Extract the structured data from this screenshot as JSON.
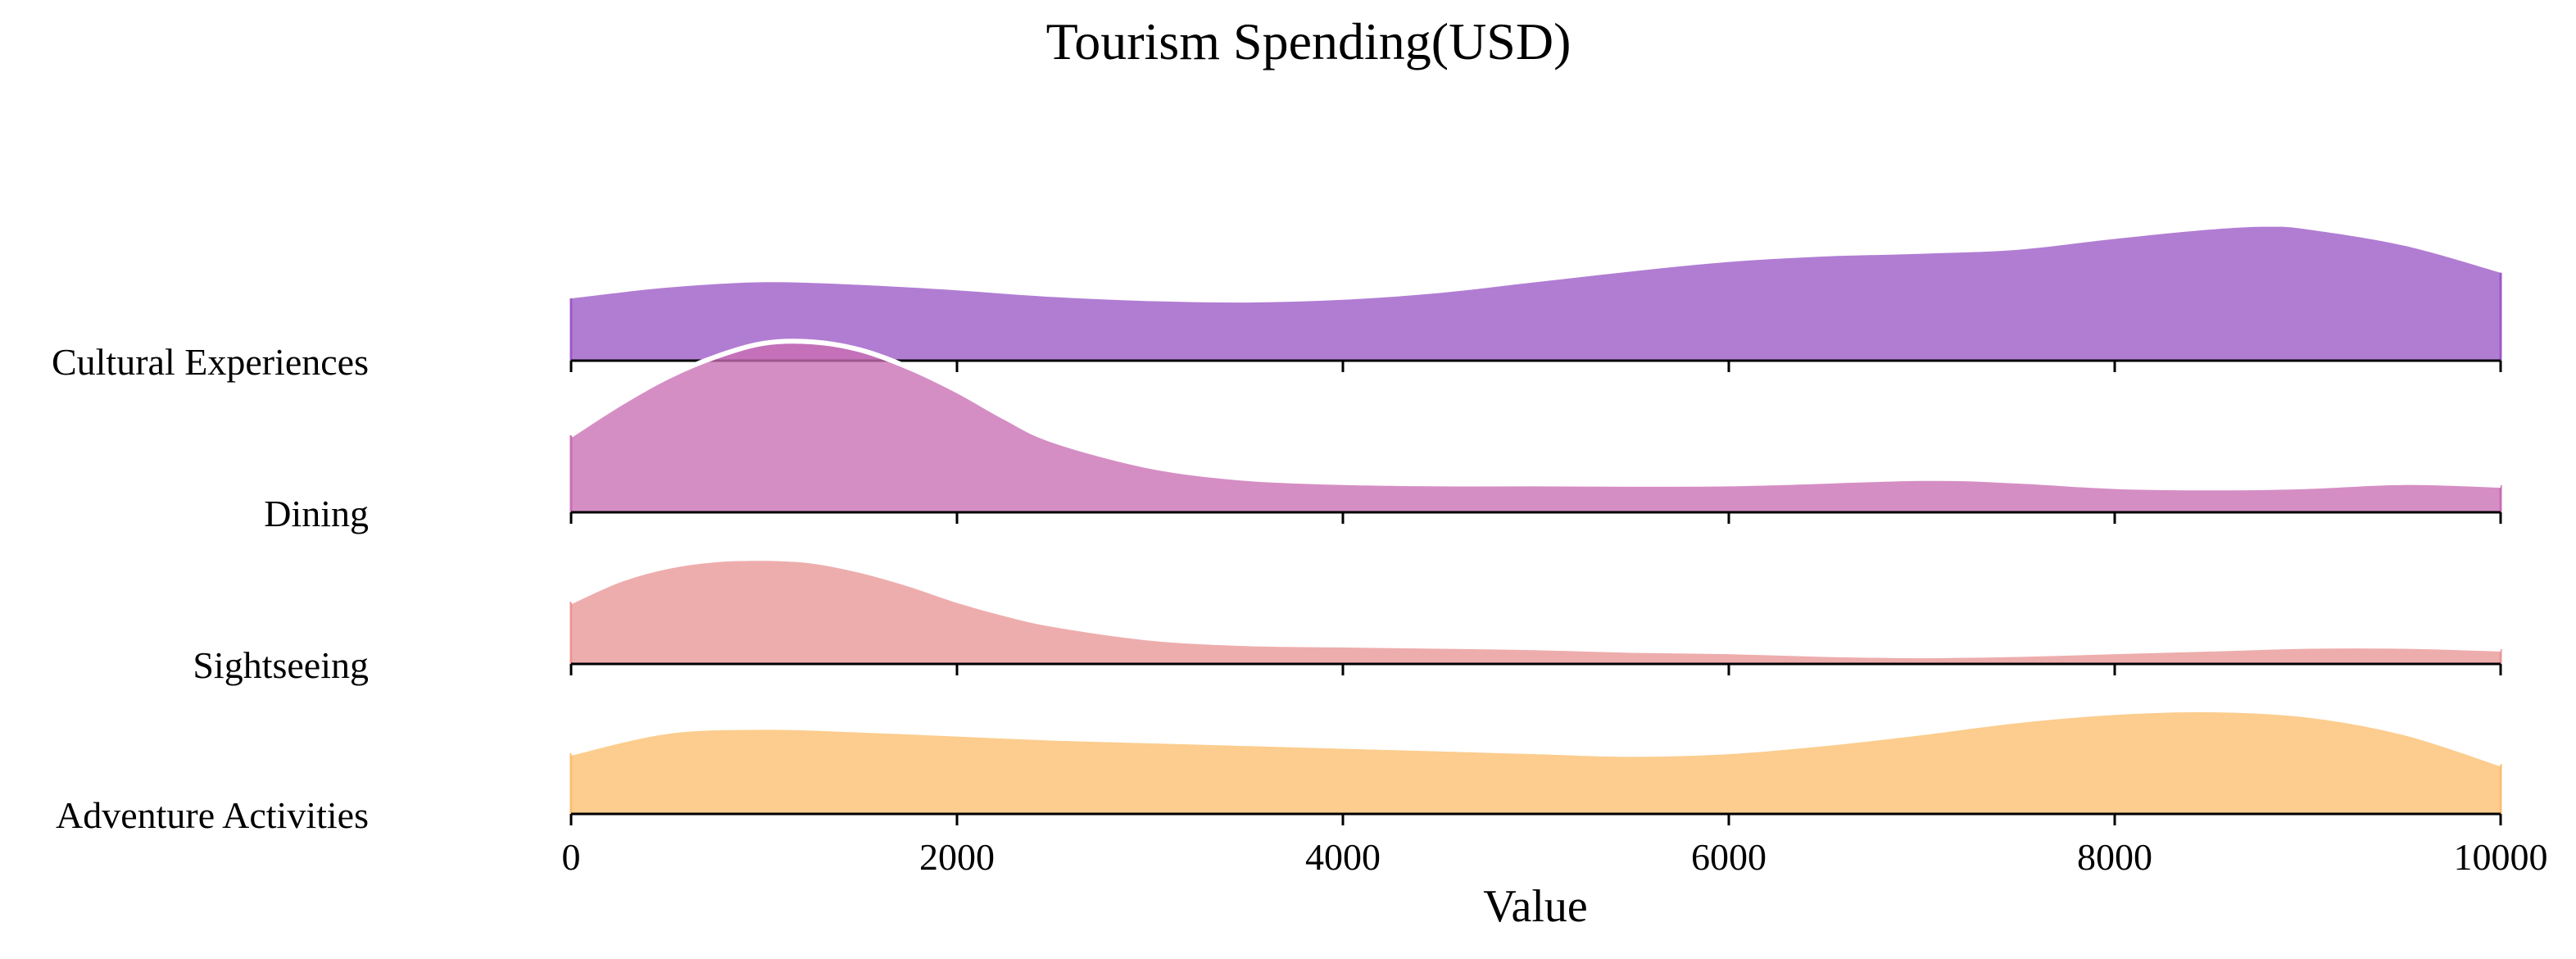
{
  "chart_data": {
    "type": "area",
    "title": "Tourism Spending(USD)",
    "xlabel": "Value",
    "ylabel": "",
    "xlim": [
      0,
      10000
    ],
    "x_ticks": [
      0,
      2000,
      4000,
      6000,
      8000,
      10000
    ],
    "x_tick_labels": [
      "0",
      "2000",
      "4000",
      "6000",
      "8000",
      "10000"
    ],
    "grid": false,
    "legend": "none",
    "series": [
      {
        "name": "Cultural Experiences",
        "color": "#9b59c6",
        "x": [
          0,
          500,
          1000,
          1500,
          2000,
          2500,
          3000,
          3500,
          4000,
          4500,
          5000,
          5500,
          6000,
          6500,
          7000,
          7500,
          8000,
          8500,
          8800,
          9000,
          9500,
          10000
        ],
        "density": [
          0.46,
          0.54,
          0.58,
          0.56,
          0.52,
          0.47,
          0.44,
          0.43,
          0.45,
          0.5,
          0.58,
          0.66,
          0.73,
          0.77,
          0.79,
          0.82,
          0.9,
          0.97,
          0.99,
          0.97,
          0.85,
          0.65
        ]
      },
      {
        "name": "Dining",
        "color": "#c96eb4",
        "x": [
          0,
          250,
          500,
          750,
          1000,
          1250,
          1500,
          1750,
          2000,
          2250,
          2500,
          3000,
          3500,
          4000,
          4500,
          5000,
          6000,
          7000,
          7500,
          8000,
          8500,
          9000,
          9500,
          10000
        ],
        "density": [
          0.57,
          0.8,
          1.0,
          1.15,
          1.25,
          1.26,
          1.2,
          1.07,
          0.9,
          0.7,
          0.53,
          0.34,
          0.25,
          0.22,
          0.21,
          0.21,
          0.21,
          0.25,
          0.23,
          0.19,
          0.18,
          0.19,
          0.22,
          0.2
        ]
      },
      {
        "name": "Sightseeing",
        "color": "#e99696",
        "x": [
          0,
          250,
          500,
          750,
          1000,
          1250,
          1500,
          1750,
          2000,
          2250,
          2500,
          3000,
          3500,
          4000,
          4500,
          5000,
          5500,
          6000,
          6500,
          7000,
          7500,
          8000,
          8500,
          9000,
          9500,
          10000
        ],
        "density": [
          0.46,
          0.62,
          0.72,
          0.77,
          0.78,
          0.76,
          0.69,
          0.59,
          0.47,
          0.37,
          0.29,
          0.19,
          0.15,
          0.14,
          0.13,
          0.12,
          0.1,
          0.09,
          0.07,
          0.06,
          0.07,
          0.09,
          0.11,
          0.13,
          0.13,
          0.11
        ]
      },
      {
        "name": "Adventure Activities",
        "color": "#fbbf6e",
        "x": [
          0,
          500,
          1000,
          1500,
          2000,
          2500,
          3000,
          3500,
          4000,
          4500,
          5000,
          5500,
          6000,
          6500,
          7000,
          7500,
          8000,
          8500,
          9000,
          9500,
          10000
        ],
        "density": [
          0.45,
          0.61,
          0.64,
          0.62,
          0.59,
          0.56,
          0.54,
          0.52,
          0.5,
          0.48,
          0.46,
          0.44,
          0.46,
          0.52,
          0.6,
          0.69,
          0.75,
          0.77,
          0.73,
          0.6,
          0.37
        ]
      }
    ]
  }
}
